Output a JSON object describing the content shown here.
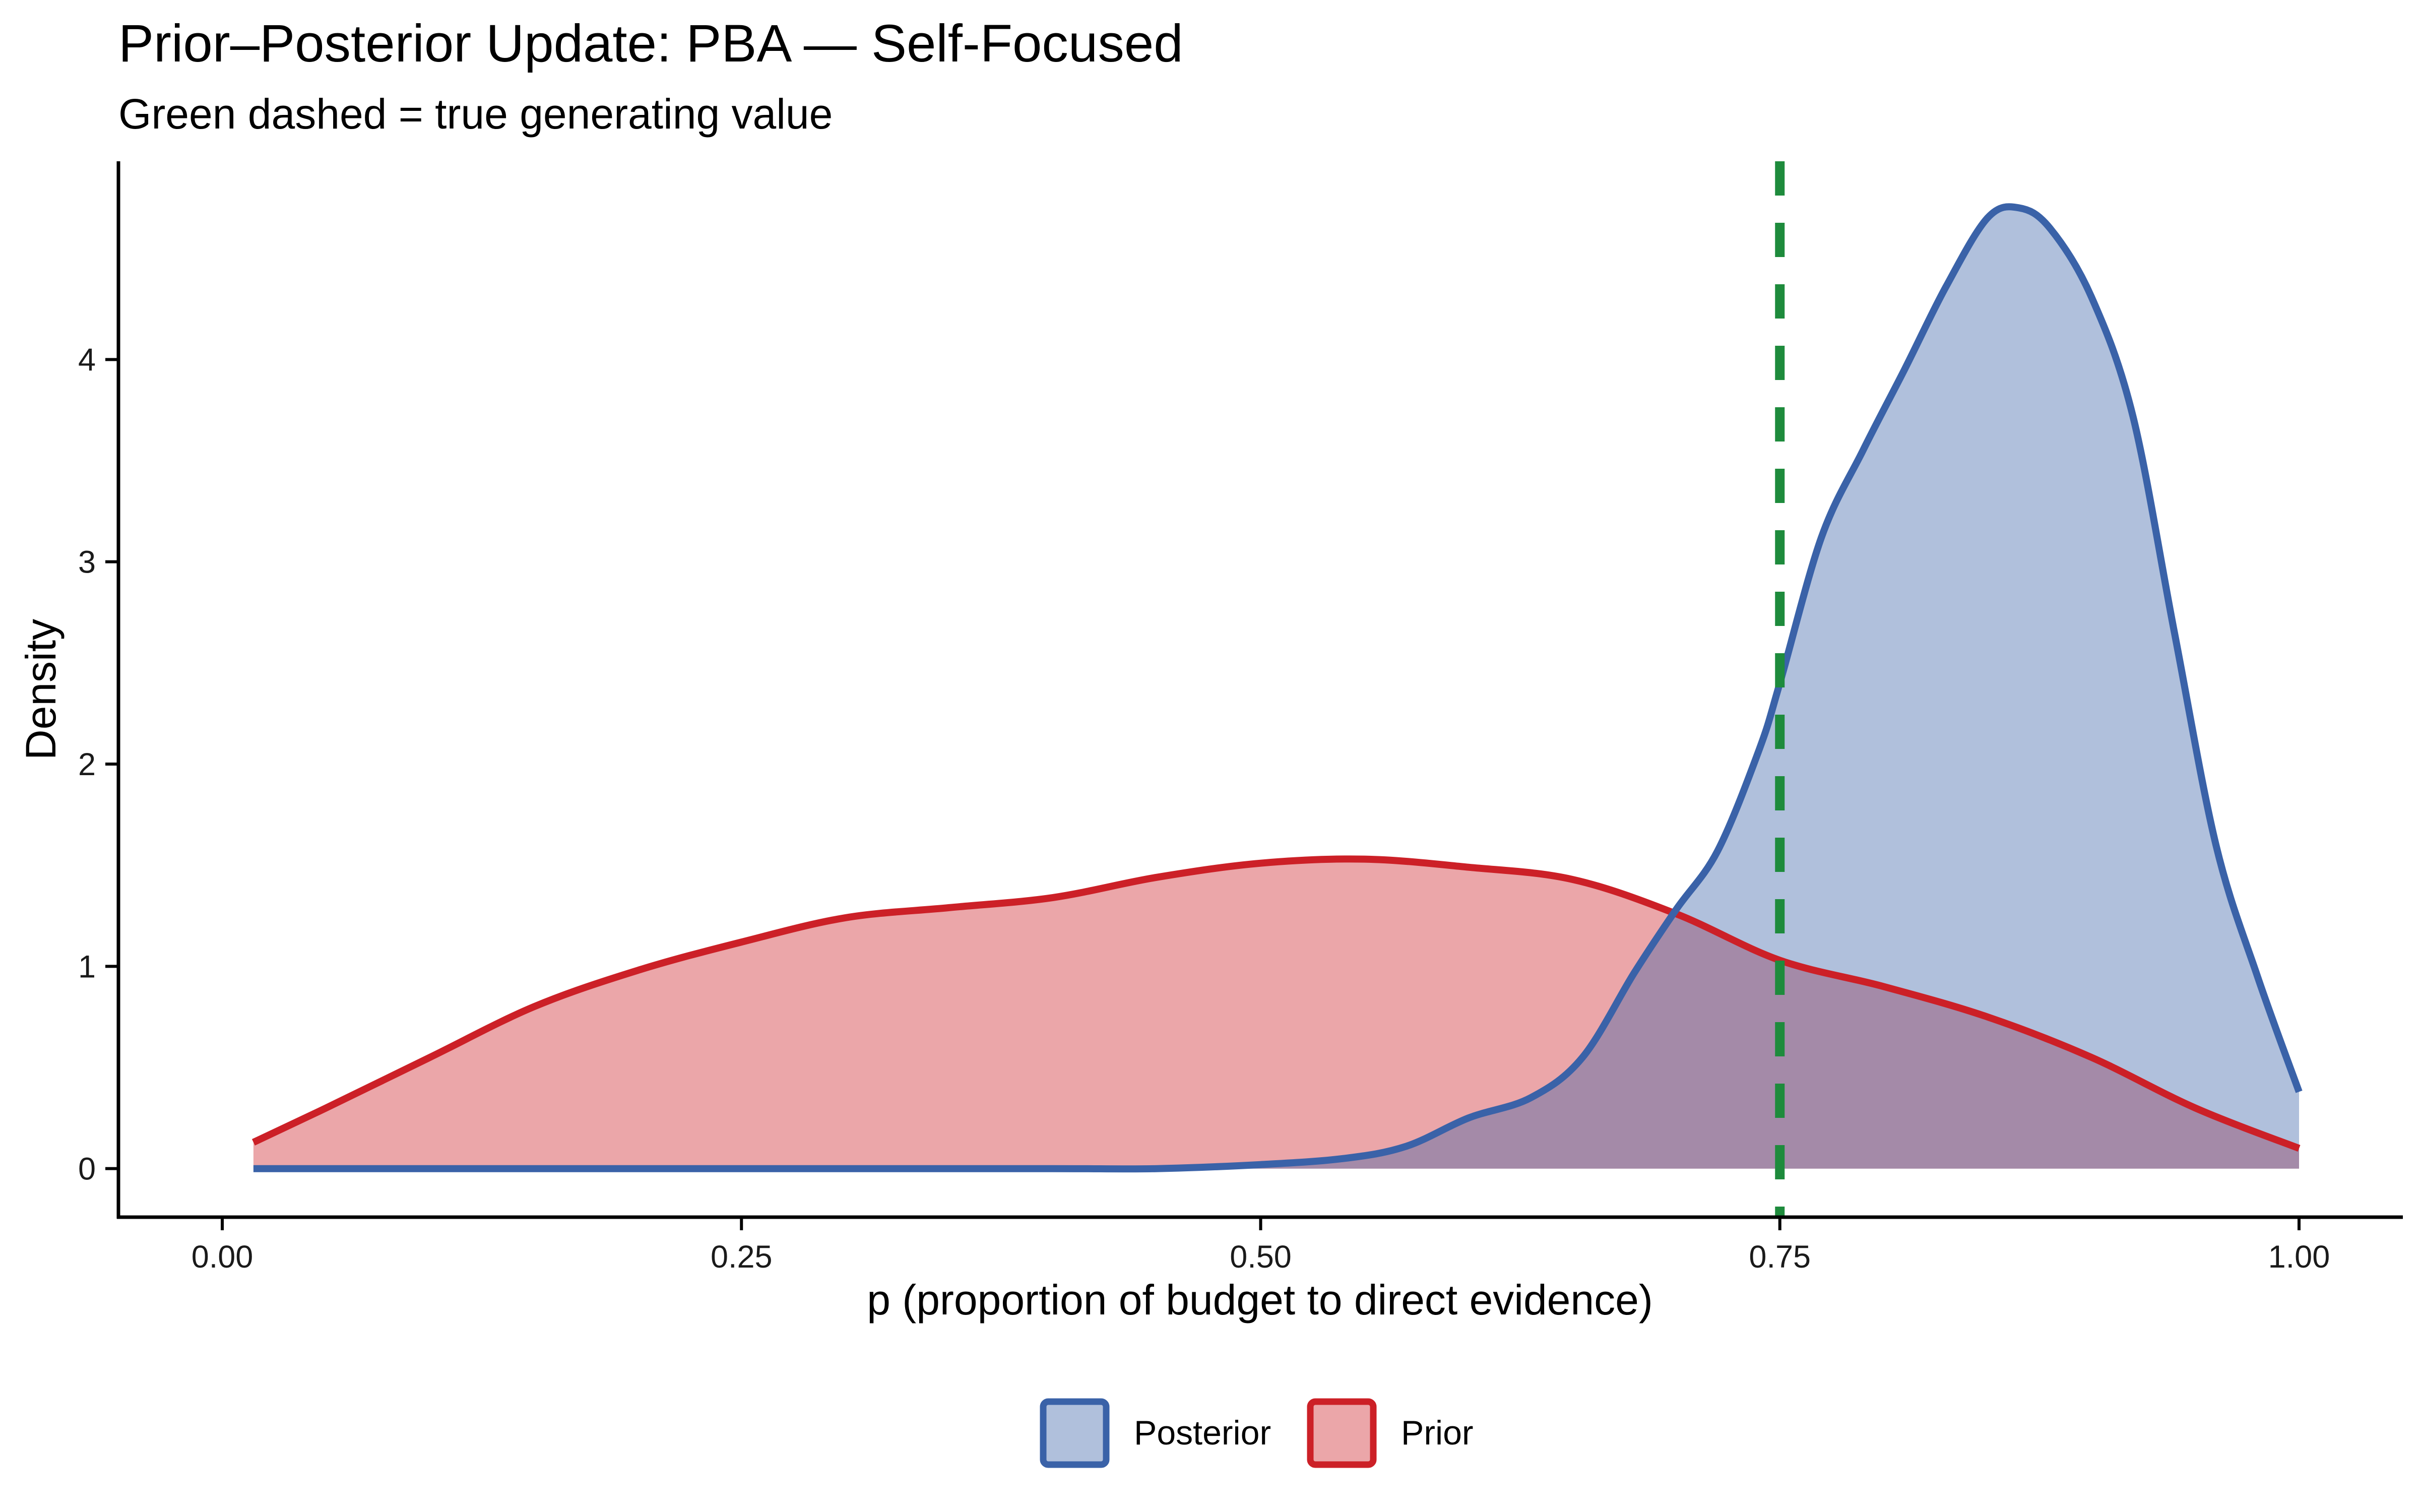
{
  "chart_data": {
    "type": "area",
    "title": "Prior–Posterior Update: PBA — Self-Focused",
    "subtitle": "Green dashed = true generating value",
    "xlabel": "p (proportion of budget to direct evidence)",
    "ylabel": "Density",
    "xlim": [
      -0.05,
      1.05
    ],
    "ylim": [
      -0.24,
      4.98
    ],
    "x_ticks": [
      0.0,
      0.25,
      0.5,
      0.75,
      1.0
    ],
    "x_tick_labels": [
      "0.00",
      "0.25",
      "0.50",
      "0.75",
      "1.00"
    ],
    "y_ticks": [
      0,
      1,
      2,
      3,
      4
    ],
    "y_tick_labels": [
      "0",
      "1",
      "2",
      "3",
      "4"
    ],
    "grid": false,
    "legend_position": "bottom",
    "reference_line": {
      "x": 0.75,
      "color": "#1e8b3c",
      "style": "dashed"
    },
    "series": [
      {
        "name": "Posterior",
        "line_color": "#3a62a8",
        "fill_color": "#adbedd",
        "x": [
          0.015,
          0.1,
          0.2,
          0.3,
          0.4,
          0.45,
          0.5,
          0.54,
          0.57,
          0.6,
          0.63,
          0.655,
          0.68,
          0.7,
          0.72,
          0.74,
          0.75,
          0.77,
          0.79,
          0.81,
          0.83,
          0.85,
          0.865,
          0.88,
          0.9,
          0.92,
          0.94,
          0.96,
          0.98,
          1.0
        ],
        "y": [
          0.0,
          0.0,
          0.0,
          0.0,
          0.0,
          0.0,
          0.02,
          0.05,
          0.11,
          0.25,
          0.35,
          0.55,
          0.97,
          1.28,
          1.57,
          2.07,
          2.4,
          3.12,
          3.55,
          3.95,
          4.36,
          4.7,
          4.75,
          4.65,
          4.31,
          3.72,
          2.65,
          1.6,
          0.95,
          0.38
        ]
      },
      {
        "name": "Prior",
        "line_color": "#cc2027",
        "fill_color": "#e9a4a6",
        "x": [
          0.015,
          0.05,
          0.1,
          0.15,
          0.2,
          0.25,
          0.3,
          0.35,
          0.4,
          0.45,
          0.5,
          0.55,
          0.6,
          0.65,
          0.7,
          0.75,
          0.8,
          0.85,
          0.9,
          0.95,
          1.0
        ],
        "y": [
          0.13,
          0.3,
          0.55,
          0.8,
          0.98,
          1.12,
          1.24,
          1.29,
          1.34,
          1.44,
          1.51,
          1.53,
          1.49,
          1.43,
          1.26,
          1.03,
          0.9,
          0.75,
          0.55,
          0.3,
          0.1
        ]
      }
    ]
  }
}
